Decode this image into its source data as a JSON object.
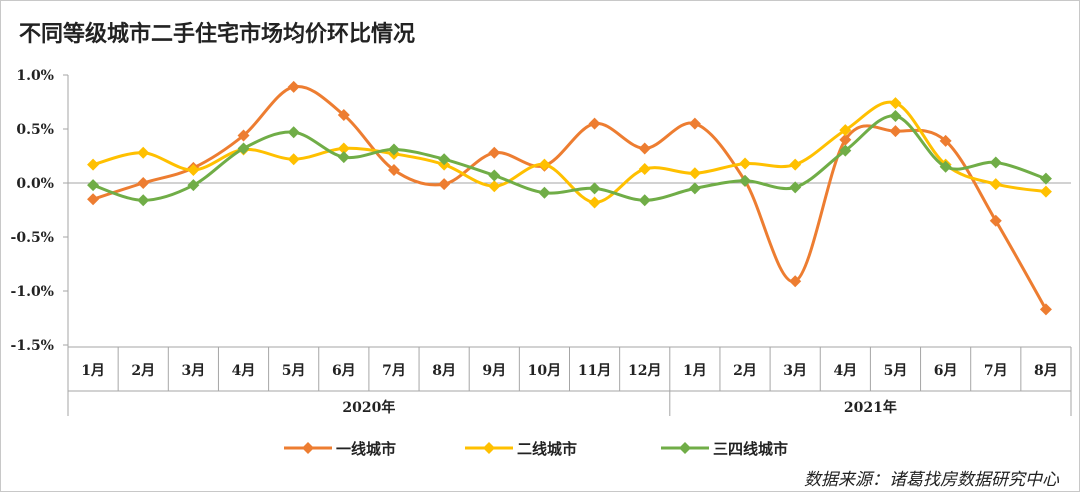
{
  "chart_data": {
    "type": "line",
    "title": "不同等级城市二手住宅市场均价环比情况",
    "categories": [
      "1月",
      "2月",
      "3月",
      "4月",
      "5月",
      "6月",
      "7月",
      "8月",
      "9月",
      "10月",
      "11月",
      "12月",
      "1月",
      "2月",
      "3月",
      "4月",
      "5月",
      "6月",
      "7月",
      "8月"
    ],
    "year_groups": [
      {
        "label": "2020年",
        "count": 12
      },
      {
        "label": "2021年",
        "count": 8
      }
    ],
    "yticks": [
      "1.0%",
      "0.5%",
      "0.0%",
      "-0.5%",
      "-1.0%",
      "-1.5%"
    ],
    "ylim": [
      -1.5,
      1.0
    ],
    "unit": "%",
    "grid": false,
    "legend_position": "bottom",
    "series": [
      {
        "name": "一线城市",
        "color": "#ED7D31",
        "values": [
          -0.15,
          0.0,
          0.14,
          0.44,
          0.89,
          0.63,
          0.12,
          -0.01,
          0.28,
          0.16,
          0.55,
          0.32,
          0.55,
          0.02,
          -0.91,
          0.4,
          0.48,
          0.39,
          -0.35,
          -1.17
        ]
      },
      {
        "name": "二线城市",
        "color": "#FFC000",
        "values": [
          0.17,
          0.28,
          0.12,
          0.31,
          0.22,
          0.32,
          0.27,
          0.17,
          -0.03,
          0.17,
          -0.18,
          0.13,
          0.09,
          0.18,
          0.17,
          0.49,
          0.74,
          0.17,
          -0.01,
          -0.08
        ]
      },
      {
        "name": "三四线城市",
        "color": "#70AD47",
        "values": [
          -0.02,
          -0.16,
          -0.02,
          0.32,
          0.47,
          0.24,
          0.31,
          0.22,
          0.07,
          -0.09,
          -0.05,
          -0.16,
          -0.05,
          0.02,
          -0.04,
          0.3,
          0.62,
          0.15,
          0.19,
          0.04
        ]
      }
    ],
    "source": "数据来源：诸葛找房数据研究中心"
  }
}
